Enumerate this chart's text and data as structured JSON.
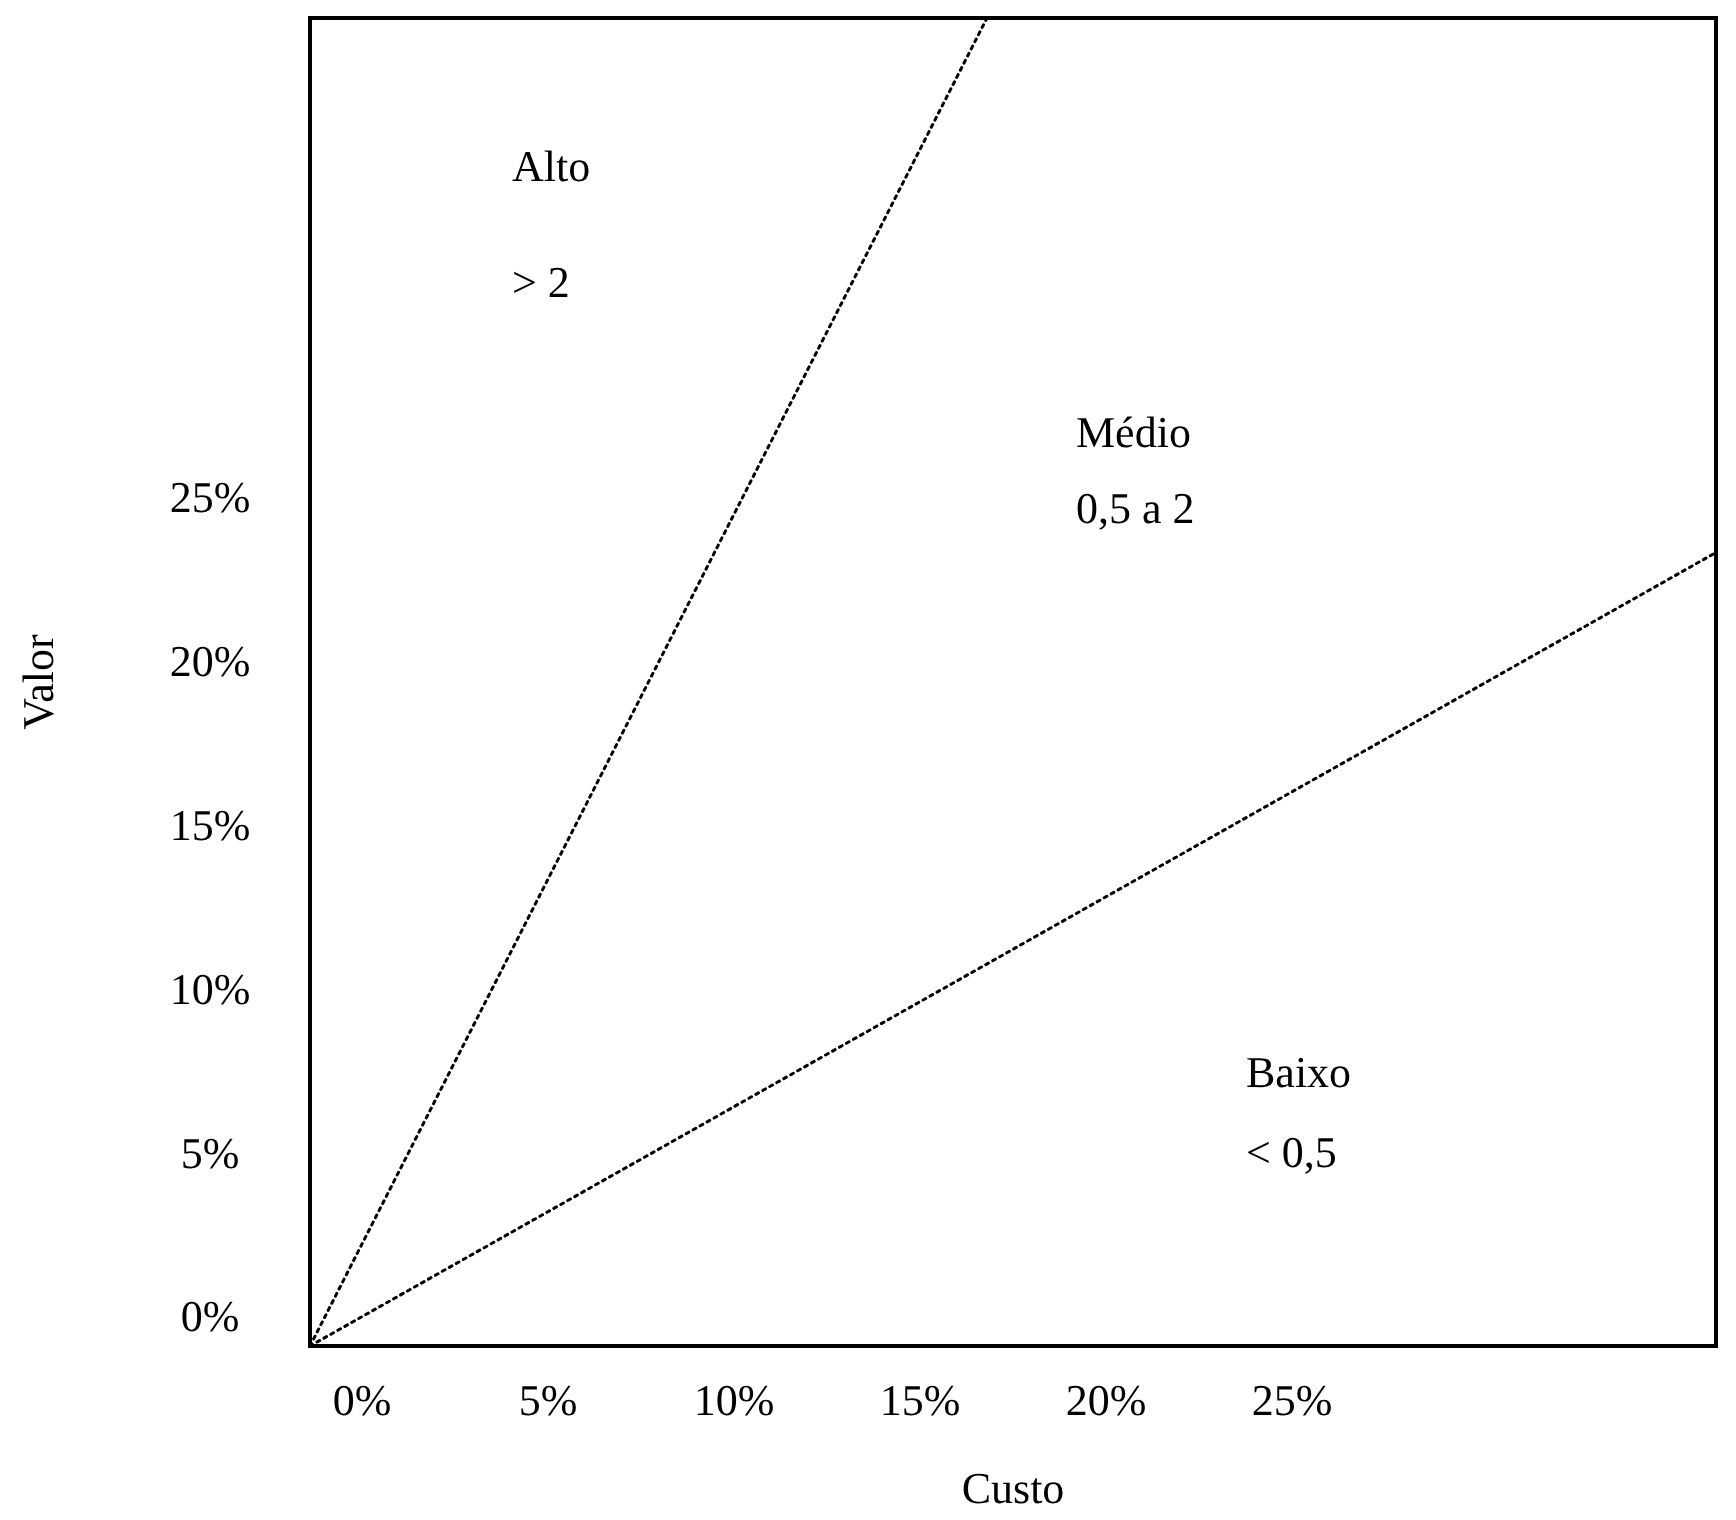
{
  "chart_data": {
    "type": "line",
    "xlabel": "Custo",
    "ylabel": "Valor",
    "xlim": [
      -1.4,
      36.4
    ],
    "ylim": [
      -0.9,
      39.6
    ],
    "xticks": [
      {
        "value": 0,
        "label": "0%"
      },
      {
        "value": 5,
        "label": "5%"
      },
      {
        "value": 10,
        "label": "10%"
      },
      {
        "value": 15,
        "label": "15%"
      },
      {
        "value": 20,
        "label": "20%"
      },
      {
        "value": 25,
        "label": "25%"
      }
    ],
    "yticks": [
      {
        "value": 0,
        "label": "0%"
      },
      {
        "value": 5,
        "label": "5%"
      },
      {
        "value": 10,
        "label": "10%"
      },
      {
        "value": 15,
        "label": "15%"
      },
      {
        "value": 20,
        "label": "20%"
      },
      {
        "value": 25,
        "label": "25%"
      }
    ],
    "series": [
      {
        "color": "#000000",
        "x": [
          -1.4,
          16.8
        ],
        "values": [
          -0.9,
          39.6
        ]
      },
      {
        "color": "#000000",
        "x": [
          -1.4,
          36.4
        ],
        "values": [
          -0.9,
          23.3
        ]
      }
    ],
    "annotations": [
      "Alto",
      "> 2",
      "Médio",
      "0,5 a 2",
      "Baixo",
      "< 0,5"
    ],
    "marker": "none",
    "line_style": "dotted"
  }
}
